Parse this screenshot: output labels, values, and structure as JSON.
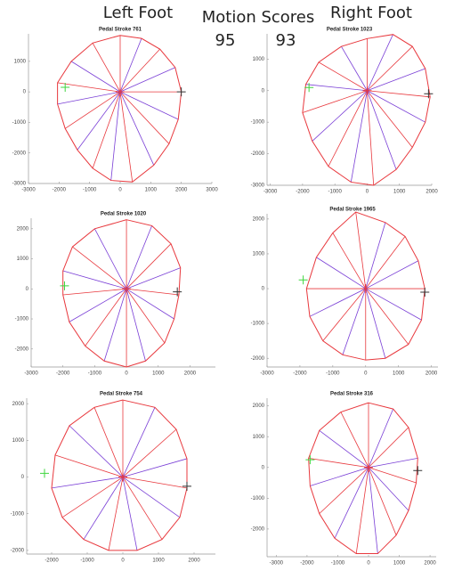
{
  "header": {
    "left": "Left Foot",
    "title": "Motion Scores",
    "left_score": 95,
    "right_score": 93,
    "right": "Right Foot"
  },
  "chart_data": [
    {
      "type": "radial",
      "title": "Pedal Stroke 761",
      "color": "#e8383d",
      "spoke_color": "#7a3fd6",
      "x": [
        0,
        700,
        1300,
        1800,
        2000,
        1900,
        1600,
        1100,
        400,
        -300,
        -900,
        -1400,
        -1800,
        -2050,
        -2050,
        -1600,
        -900
      ],
      "y": [
        1850,
        1750,
        1400,
        800,
        0,
        -900,
        -1700,
        -2400,
        -2950,
        -2900,
        -2500,
        -1900,
        -1200,
        -400,
        300,
        1000,
        1600
      ],
      "markers": [
        {
          "x": 0,
          "y": 0,
          "color": "#e8383d"
        },
        {
          "x": -1800,
          "y": 150,
          "color": "#3fd63f"
        },
        {
          "x": 2000,
          "y": 0,
          "color": "#333333"
        }
      ],
      "xlim": [
        -3000,
        3000
      ],
      "ylim": [
        -3000,
        1900
      ],
      "xticks": [
        -3000,
        -2000,
        -1000,
        0,
        1000,
        2000,
        3000
      ],
      "yticks": [
        -3000,
        -2000,
        -1000,
        0,
        1000
      ]
    },
    {
      "type": "radial",
      "title": "Pedal Stroke 1023",
      "color": "#e8383d",
      "spoke_color": "#7a3fd6",
      "x": [
        0,
        800,
        1400,
        1800,
        1950,
        1800,
        1400,
        900,
        200,
        -500,
        -1200,
        -1700,
        -2000,
        -1900,
        -1500,
        -800
      ],
      "y": [
        1650,
        1780,
        1400,
        700,
        -200,
        -1000,
        -1800,
        -2500,
        -3000,
        -2900,
        -2400,
        -1600,
        -700,
        200,
        900,
        1400
      ],
      "markers": [
        {
          "x": 0,
          "y": 0,
          "color": "#e8383d"
        },
        {
          "x": -1800,
          "y": 100,
          "color": "#3fd63f"
        },
        {
          "x": 1900,
          "y": -100,
          "color": "#333333"
        }
      ],
      "xlim": [
        -3100,
        2000
      ],
      "ylim": [
        -3000,
        1800
      ],
      "xticks": [
        -3000,
        -2000,
        -1000,
        0,
        1000,
        2000
      ],
      "yticks": [
        -3000,
        -2000,
        -1000,
        0,
        1000
      ]
    },
    {
      "type": "radial",
      "title": "Pedal Stroke 1020",
      "color": "#e8383d",
      "spoke_color": "#7a3fd6",
      "x": [
        0,
        800,
        1400,
        1700,
        1650,
        1500,
        1200,
        600,
        0,
        -700,
        -1300,
        -1800,
        -2000,
        -2000,
        -1700,
        -1000
      ],
      "y": [
        2300,
        2100,
        1500,
        700,
        -200,
        -1000,
        -1800,
        -2400,
        -2600,
        -2400,
        -1900,
        -1100,
        -200,
        600,
        1400,
        2000
      ],
      "markers": [
        {
          "x": 0,
          "y": 0,
          "color": "#e8383d"
        },
        {
          "x": -1950,
          "y": 100,
          "color": "#3fd63f"
        },
        {
          "x": 1600,
          "y": -100,
          "color": "#333333"
        }
      ],
      "xlim": [
        -3000,
        2800
      ],
      "ylim": [
        -2600,
        2350
      ],
      "xticks": [
        -3000,
        -2000,
        -1000,
        0,
        1000,
        2000
      ],
      "yticks": [
        -2000,
        -1000,
        0,
        1000,
        2000
      ]
    },
    {
      "type": "radial",
      "title": "Pedal Stroke 1965",
      "color": "#e8383d",
      "spoke_color": "#7a3fd6",
      "x": [
        -300,
        600,
        1200,
        1600,
        1800,
        1700,
        1300,
        600,
        0,
        -700,
        -1300,
        -1700,
        -1800,
        -1500,
        -1000
      ],
      "y": [
        2200,
        1900,
        1500,
        800,
        0,
        -900,
        -1600,
        -2000,
        -2050,
        -1900,
        -1500,
        -800,
        0,
        900,
        1600
      ],
      "markers": [
        {
          "x": 0,
          "y": 0,
          "color": "#e8383d"
        },
        {
          "x": -1900,
          "y": 250,
          "color": "#3fd63f"
        },
        {
          "x": 1800,
          "y": -100,
          "color": "#333333"
        }
      ],
      "xlim": [
        -3000,
        2200
      ],
      "ylim": [
        -2250,
        2150
      ],
      "xticks": [
        -3000,
        -2000,
        -1000,
        0,
        1000,
        2000
      ],
      "yticks": [
        -2000,
        -1000,
        0,
        1000,
        2000
      ]
    },
    {
      "type": "radial",
      "title": "Pedal Stroke 754",
      "color": "#e8383d",
      "spoke_color": "#7a3fd6",
      "x": [
        0,
        900,
        1500,
        1800,
        1800,
        1600,
        1100,
        400,
        -400,
        -1100,
        -1700,
        -2000,
        -1900,
        -1500,
        -800
      ],
      "y": [
        2100,
        1900,
        1300,
        500,
        -300,
        -1100,
        -1700,
        -2000,
        -2000,
        -1700,
        -1100,
        -300,
        600,
        1400,
        1900
      ],
      "markers": [
        {
          "x": 0,
          "y": 0,
          "color": "#e8383d"
        },
        {
          "x": -2200,
          "y": 100,
          "color": "#3fd63f"
        },
        {
          "x": 1800,
          "y": -250,
          "color": "#333333"
        }
      ],
      "xlim": [
        -2700,
        2600
      ],
      "ylim": [
        -2100,
        2150
      ],
      "xticks": [
        -2000,
        -1000,
        0,
        1000,
        2000
      ],
      "yticks": [
        -2000,
        -1000,
        0,
        1000,
        2000
      ]
    },
    {
      "type": "radial",
      "title": "Pedal Stroke 316",
      "color": "#e8383d",
      "spoke_color": "#7a3fd6",
      "x": [
        0,
        800,
        1300,
        1600,
        1550,
        1300,
        900,
        300,
        -400,
        -1100,
        -1600,
        -1900,
        -1950,
        -1600,
        -900
      ],
      "y": [
        2100,
        1900,
        1300,
        300,
        -500,
        -1400,
        -2200,
        -2800,
        -2800,
        -2300,
        -1500,
        -600,
        300,
        1200,
        1800
      ],
      "markers": [
        {
          "x": 0,
          "y": 0,
          "color": "#e8383d"
        },
        {
          "x": -1900,
          "y": 250,
          "color": "#3fd63f"
        },
        {
          "x": 1600,
          "y": -100,
          "color": "#333333"
        }
      ],
      "xlim": [
        -3300,
        2200
      ],
      "ylim": [
        -2900,
        2250
      ],
      "xticks": [
        -3000,
        -2000,
        -1000,
        0,
        1000,
        2000
      ],
      "yticks": [
        -2000,
        -1000,
        0,
        1000,
        2000
      ]
    }
  ]
}
